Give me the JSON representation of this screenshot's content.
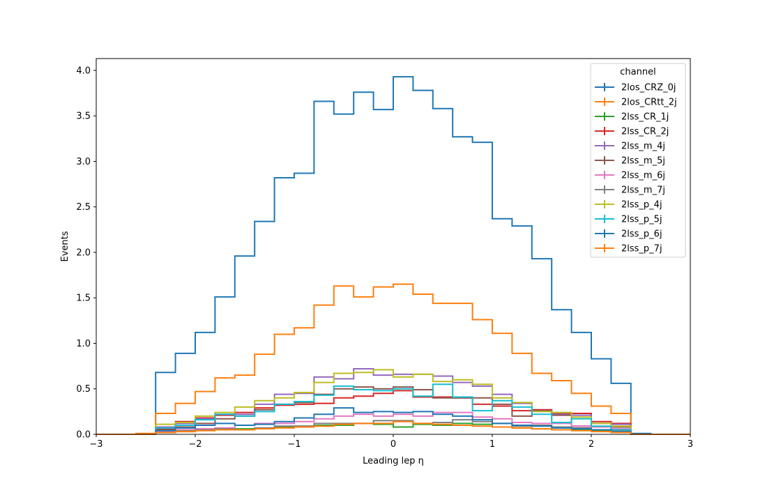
{
  "chart_data": {
    "type": "line",
    "drawstyle": "step-histogram",
    "xlabel": "Leading lep η",
    "ylabel": "Events",
    "xlim": [
      -3,
      3
    ],
    "ylim": [
      0,
      4.13
    ],
    "xticks": [
      -3,
      -2,
      -1,
      0,
      1,
      2,
      3
    ],
    "xtick_labels": [
      "−3",
      "−2",
      "−1",
      "0",
      "1",
      "2",
      "3"
    ],
    "yticks": [
      0,
      0.5,
      1.0,
      1.5,
      2.0,
      2.5,
      3.0,
      3.5,
      4.0
    ],
    "ytick_labels": [
      "0.0",
      "0.5",
      "1.0",
      "1.5",
      "2.0",
      "2.5",
      "3.0",
      "3.5",
      "4.0"
    ],
    "grid": false,
    "legend": {
      "title": "channel",
      "placement": "top-right"
    },
    "bin_edges": [
      -3.0,
      -2.8,
      -2.6,
      -2.4,
      -2.2,
      -2.0,
      -1.8,
      -1.6,
      -1.4,
      -1.2,
      -1.0,
      -0.8,
      -0.6,
      -0.4,
      -0.2,
      0.0,
      0.2,
      0.4,
      0.6,
      0.8,
      1.0,
      1.2,
      1.4,
      1.6,
      1.8,
      2.0,
      2.2,
      2.4,
      2.6,
      2.8,
      3.0
    ],
    "series": [
      {
        "name": "2los_CRZ_0j",
        "color": "#1f77b4",
        "values": [
          0,
          0,
          0,
          0.68,
          0.89,
          1.12,
          1.51,
          1.96,
          2.34,
          2.82,
          2.87,
          3.66,
          3.52,
          3.76,
          3.57,
          3.93,
          3.78,
          3.58,
          3.27,
          3.21,
          2.37,
          2.29,
          1.93,
          1.37,
          1.12,
          0.83,
          0.56,
          0,
          0,
          0
        ]
      },
      {
        "name": "2los_CRtt_2j",
        "color": "#ff7f0e",
        "values": [
          0,
          0,
          0.01,
          0.23,
          0.34,
          0.47,
          0.62,
          0.65,
          0.88,
          1.1,
          1.17,
          1.42,
          1.63,
          1.51,
          1.62,
          1.65,
          1.54,
          1.44,
          1.44,
          1.26,
          1.11,
          0.89,
          0.67,
          0.59,
          0.45,
          0.31,
          0.23,
          0,
          0,
          0
        ]
      },
      {
        "name": "2lss_CR_1j",
        "color": "#2ca02c",
        "values": [
          0,
          0,
          0,
          0.02,
          0.04,
          0.05,
          0.05,
          0.06,
          0.07,
          0.08,
          0.09,
          0.1,
          0.1,
          0.12,
          0.11,
          0.08,
          0.11,
          0.1,
          0.12,
          0.11,
          0.08,
          0.07,
          0.06,
          0.05,
          0.05,
          0.04,
          0.03,
          0,
          0,
          0
        ]
      },
      {
        "name": "2lss_CR_2j",
        "color": "#d62728",
        "values": [
          0,
          0,
          0,
          0.06,
          0.14,
          0.18,
          0.21,
          0.24,
          0.29,
          0.32,
          0.33,
          0.34,
          0.4,
          0.42,
          0.45,
          0.48,
          0.41,
          0.41,
          0.4,
          0.33,
          0.31,
          0.26,
          0.27,
          0.23,
          0.23,
          0.14,
          0.12,
          0,
          0,
          0
        ]
      },
      {
        "name": "2lss_m_4j",
        "color": "#9467bd",
        "values": [
          0,
          0,
          0,
          0.08,
          0.12,
          0.17,
          0.22,
          0.22,
          0.33,
          0.44,
          0.45,
          0.63,
          0.61,
          0.72,
          0.65,
          0.66,
          0.66,
          0.64,
          0.57,
          0.53,
          0.44,
          0.34,
          0.26,
          0.22,
          0.21,
          0.12,
          0.11,
          0,
          0,
          0
        ]
      },
      {
        "name": "2lss_m_5j",
        "color": "#8c564b",
        "values": [
          0,
          0,
          0,
          0.05,
          0.08,
          0.12,
          0.17,
          0.2,
          0.27,
          0.33,
          0.35,
          0.44,
          0.5,
          0.52,
          0.5,
          0.52,
          0.49,
          0.4,
          0.4,
          0.4,
          0.33,
          0.2,
          0.26,
          0.21,
          0.09,
          0.08,
          0.08,
          0,
          0,
          0
        ]
      },
      {
        "name": "2lss_m_6j",
        "color": "#e377c2",
        "values": [
          0,
          0,
          0,
          0.03,
          0.05,
          0.06,
          0.07,
          0.1,
          0.12,
          0.12,
          0.14,
          0.17,
          0.2,
          0.22,
          0.2,
          0.22,
          0.2,
          0.24,
          0.24,
          0.19,
          0.17,
          0.13,
          0.12,
          0.12,
          0.09,
          0.08,
          0.06,
          0,
          0,
          0
        ]
      },
      {
        "name": "2lss_m_7j",
        "color": "#7f7f7f",
        "values": [
          0,
          0,
          0,
          0.02,
          0.03,
          0.05,
          0.06,
          0.05,
          0.07,
          0.09,
          0.09,
          0.12,
          0.12,
          0.12,
          0.15,
          0.15,
          0.12,
          0.13,
          0.16,
          0.14,
          0.12,
          0.09,
          0.1,
          0.08,
          0.07,
          0.05,
          0.04,
          0,
          0,
          0
        ]
      },
      {
        "name": "2lss_p_4j",
        "color": "#bcbd22",
        "values": [
          0,
          0,
          0,
          0.11,
          0.13,
          0.2,
          0.24,
          0.3,
          0.37,
          0.4,
          0.46,
          0.57,
          0.67,
          0.68,
          0.71,
          0.63,
          0.66,
          0.58,
          0.6,
          0.55,
          0.4,
          0.35,
          0.25,
          0.24,
          0.19,
          0.12,
          0.09,
          0,
          0,
          0
        ]
      },
      {
        "name": "2lss_p_5j",
        "color": "#17becf",
        "values": [
          0,
          0,
          0,
          0.07,
          0.1,
          0.16,
          0.22,
          0.2,
          0.25,
          0.33,
          0.36,
          0.43,
          0.53,
          0.49,
          0.48,
          0.5,
          0.42,
          0.55,
          0.41,
          0.26,
          0.37,
          0.3,
          0.22,
          0.13,
          0.17,
          0.09,
          0.05,
          0,
          0,
          0
        ]
      },
      {
        "name": "2lss_p_6j",
        "color": "#1f77b4",
        "values": [
          0,
          0,
          0,
          0.04,
          0.07,
          0.1,
          0.12,
          0.1,
          0.11,
          0.14,
          0.18,
          0.22,
          0.29,
          0.24,
          0.25,
          0.24,
          0.25,
          0.22,
          0.2,
          0.16,
          0.12,
          0.1,
          0.09,
          0.07,
          0.06,
          0.05,
          0.03,
          0.01,
          0,
          0
        ]
      },
      {
        "name": "2lss_p_7j",
        "color": "#ff7f0e",
        "values": [
          0,
          0,
          0,
          0.02,
          0.03,
          0.04,
          0.05,
          0.05,
          0.06,
          0.07,
          0.08,
          0.09,
          0.11,
          0.12,
          0.12,
          0.14,
          0.12,
          0.11,
          0.1,
          0.09,
          0.08,
          0.07,
          0.06,
          0.05,
          0.04,
          0.03,
          0.02,
          0,
          0,
          0
        ]
      }
    ]
  }
}
